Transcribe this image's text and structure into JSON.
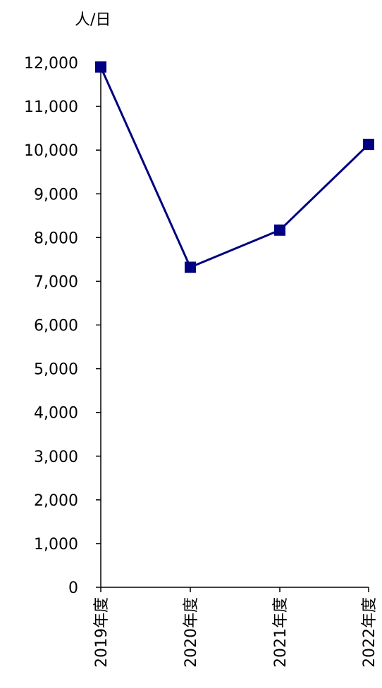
{
  "chart_data": {
    "type": "line",
    "title": "",
    "xlabel": "",
    "ylabel": "人/日",
    "categories": [
      "2019年度",
      "2020年度",
      "2021年度",
      "2022年度"
    ],
    "series": [
      {
        "name": "",
        "values": [
          11900,
          7320,
          8170,
          10130
        ],
        "color": "#000080",
        "marker": "square"
      }
    ],
    "ylim": [
      0,
      12000
    ],
    "y_ticks": [
      0,
      1000,
      2000,
      3000,
      4000,
      5000,
      6000,
      7000,
      8000,
      9000,
      10000,
      11000,
      12000
    ],
    "y_tick_labels": [
      "0",
      "1,000",
      "2,000",
      "3,000",
      "4,000",
      "5,000",
      "6,000",
      "7,000",
      "8,000",
      "9,000",
      "10,000",
      "11,000",
      "12,000"
    ],
    "grid": false,
    "legend": "none",
    "colors": {
      "line": "#000080",
      "axis": "#000000"
    }
  }
}
